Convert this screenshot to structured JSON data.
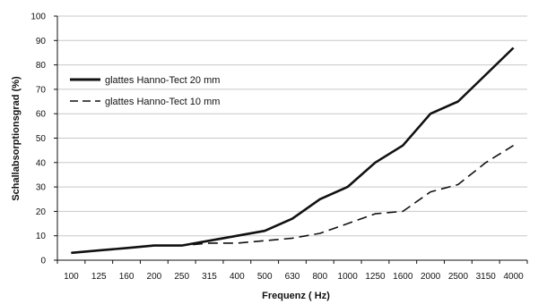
{
  "chart_data": {
    "type": "line",
    "xlabel": "Frequenz ( Hz)",
    "ylabel": "Schallabsorptionsgrad (%)",
    "ylim": [
      0,
      100
    ],
    "yticks": [
      0,
      10,
      20,
      30,
      40,
      50,
      60,
      70,
      80,
      90,
      100
    ],
    "categories": [
      "100",
      "125",
      "160",
      "200",
      "250",
      "315",
      "400",
      "500",
      "630",
      "800",
      "1000",
      "1250",
      "1600",
      "2000",
      "2500",
      "3150",
      "4000"
    ],
    "grid": "horizontal",
    "legend_position": "top-left",
    "series": [
      {
        "name": "glattes Hanno-Tect 20 mm",
        "style": "solid",
        "color": "#111111",
        "values": [
          3,
          4,
          5,
          6,
          6,
          8,
          10,
          12,
          17,
          25,
          30,
          40,
          47,
          60,
          65,
          76,
          87
        ]
      },
      {
        "name": "glattes Hanno-Tect 10 mm",
        "style": "dashed",
        "color": "#111111",
        "values": [
          3,
          4,
          5,
          6,
          6,
          7,
          7,
          8,
          9,
          11,
          15,
          19,
          20,
          28,
          31,
          40,
          47
        ]
      }
    ]
  }
}
